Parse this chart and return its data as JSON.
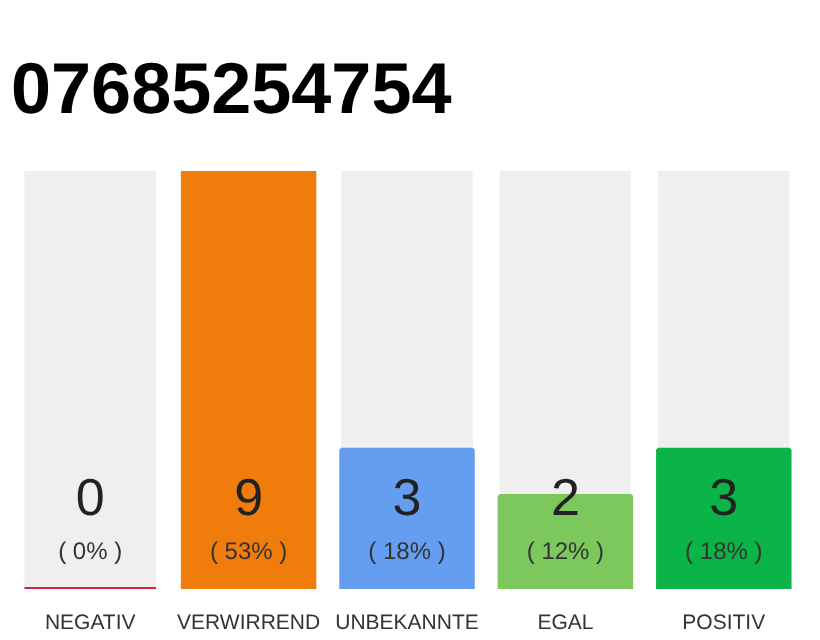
{
  "chart_data": {
    "type": "bar",
    "title": "07685254754",
    "categories": [
      "NEGATIV",
      "VERWIRREND",
      "UNBEKANNTE",
      "EGAL",
      "POSITIV"
    ],
    "values": [
      0,
      9,
      3,
      2,
      3
    ],
    "colors": [
      "#e0203a",
      "#f07c0c",
      "#659df0",
      "#7dc85c",
      "#0bb449"
    ],
    "ylim": [
      0,
      9
    ],
    "tick_labels": "x",
    "data_labels": true,
    "annotations": [
      "( 0% )",
      "( 53% )",
      "( 18% )",
      "( 12% )",
      "( 18% )"
    ]
  }
}
